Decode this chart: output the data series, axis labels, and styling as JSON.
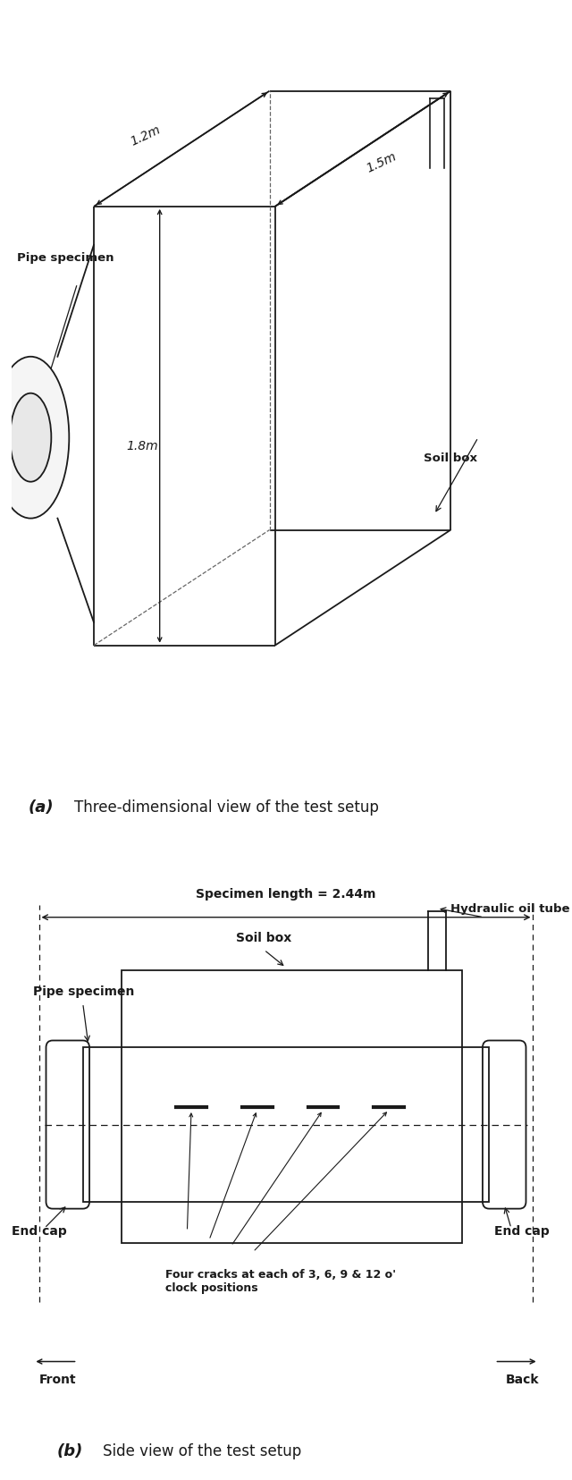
{
  "fig_width": 6.4,
  "fig_height": 16.56,
  "bg_color": "#ffffff",
  "line_color": "#1a1a1a",
  "part_a": {
    "caption_label": "(a)",
    "caption_text": "Three-dimensional view of the test setup",
    "dim_12m": "1.2m",
    "dim_15m": "1.5m",
    "dim_18m": "1.8m",
    "label_pipe": "Pipe specimen",
    "label_soil": "Soil box"
  },
  "part_b": {
    "caption_label": "(b)",
    "caption_text": "Side view of the test setup",
    "label_specimen_length": "Specimen length = 2.44m",
    "label_soil_box": "Soil box",
    "label_pipe_specimen": "Pipe specimen",
    "label_hydraulic": "Hydraulic oil tube",
    "label_endcap_left": "End cap",
    "label_endcap_right": "End cap",
    "label_front": "Front",
    "label_back": "Back",
    "label_cracks": "Four cracks at each of 3, 6, 9 & 12 o'\nclock positions"
  }
}
